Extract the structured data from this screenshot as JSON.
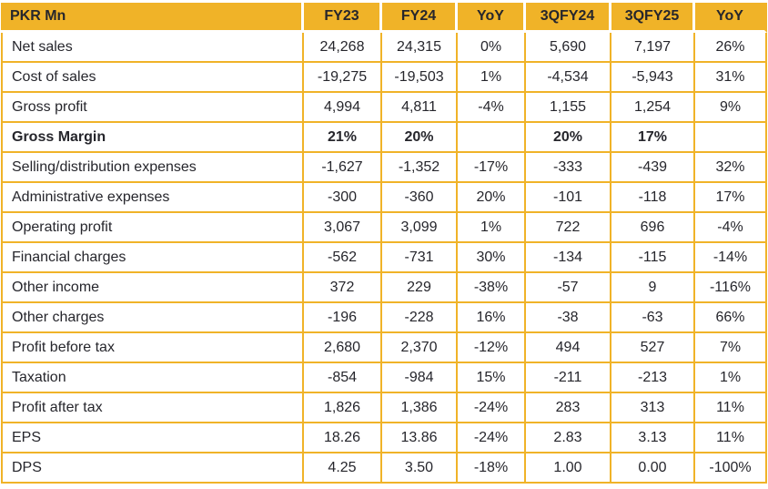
{
  "colors": {
    "accent_gold": "#F0B328",
    "text_dark": "#26262C"
  },
  "table": {
    "unit_label": "PKR Mn",
    "columns": [
      "FY23",
      "FY24",
      "YoY",
      "3QFY24",
      "3QFY25",
      "YoY"
    ],
    "rows": [
      {
        "label": "Net sales",
        "bold": false,
        "values": [
          "24,268",
          "24,315",
          "0%",
          "5,690",
          "7,197",
          "26%"
        ]
      },
      {
        "label": "Cost of sales",
        "bold": false,
        "values": [
          "-19,275",
          "-19,503",
          "1%",
          "-4,534",
          "-5,943",
          "31%"
        ]
      },
      {
        "label": "Gross profit",
        "bold": false,
        "values": [
          "4,994",
          "4,811",
          "-4%",
          "1,155",
          "1,254",
          "9%"
        ]
      },
      {
        "label": "Gross Margin",
        "bold": true,
        "values": [
          "21%",
          "20%",
          "",
          "20%",
          "17%",
          ""
        ]
      },
      {
        "label": "Selling/distribution expenses",
        "bold": false,
        "values": [
          "-1,627",
          "-1,352",
          "-17%",
          "-333",
          "-439",
          "32%"
        ]
      },
      {
        "label": "Administrative expenses",
        "bold": false,
        "values": [
          "-300",
          "-360",
          "20%",
          "-101",
          "-118",
          "17%"
        ]
      },
      {
        "label": "Operating profit",
        "bold": false,
        "values": [
          "3,067",
          "3,099",
          "1%",
          "722",
          "696",
          "-4%"
        ]
      },
      {
        "label": "Financial charges",
        "bold": false,
        "values": [
          "-562",
          "-731",
          "30%",
          "-134",
          "-115",
          "-14%"
        ]
      },
      {
        "label": "Other income",
        "bold": false,
        "values": [
          "372",
          "229",
          "-38%",
          "-57",
          "9",
          "-116%"
        ]
      },
      {
        "label": "Other charges",
        "bold": false,
        "values": [
          "-196",
          "-228",
          "16%",
          "-38",
          "-63",
          "66%"
        ]
      },
      {
        "label": "Profit before tax",
        "bold": false,
        "values": [
          "2,680",
          "2,370",
          "-12%",
          "494",
          "527",
          "7%"
        ]
      },
      {
        "label": "Taxation",
        "bold": false,
        "values": [
          "-854",
          "-984",
          "15%",
          "-211",
          "-213",
          "1%"
        ]
      },
      {
        "label": "Profit after tax",
        "bold": false,
        "values": [
          "1,826",
          "1,386",
          "-24%",
          "283",
          "313",
          "11%"
        ]
      },
      {
        "label": "EPS",
        "bold": false,
        "values": [
          "18.26",
          "13.86",
          "-24%",
          "2.83",
          "3.13",
          "11%"
        ]
      },
      {
        "label": "DPS",
        "bold": false,
        "values": [
          "4.25",
          "3.50",
          "-18%",
          "1.00",
          "0.00",
          "-100%"
        ]
      }
    ]
  }
}
